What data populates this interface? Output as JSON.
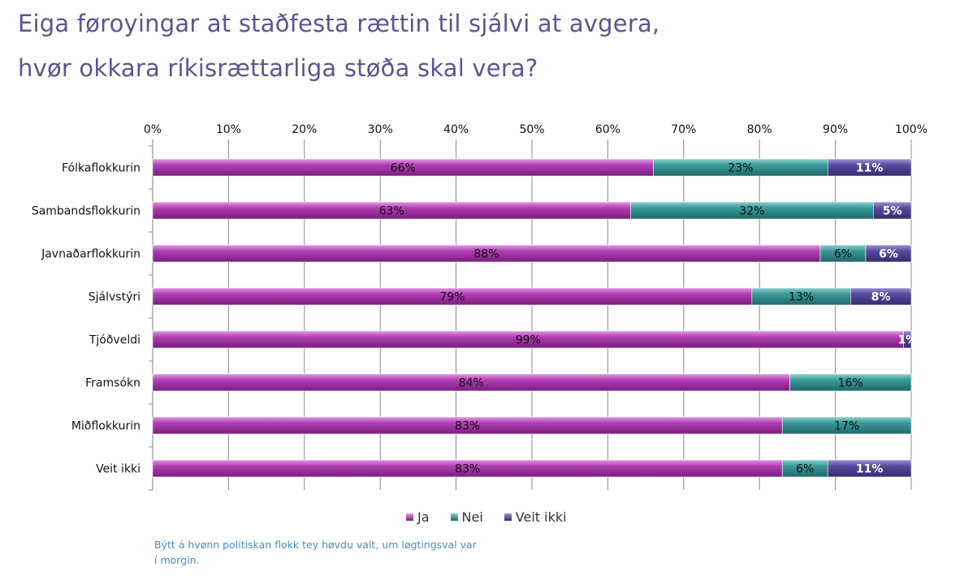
{
  "title": {
    "line1": "Eiga føroyingar at staðfesta rættin til sjálvi at avgera,",
    "line2": "hvør okkara ríkisrættarliga støða skal vera?"
  },
  "footnote": "Býtt á hvønn politiskan flokk tey høvdu valt, um løgtingsval var í morgin.",
  "colors": {
    "ja": "#9b2a9e",
    "nei": "#2f8c8c",
    "veit_ikki": "#4a3f8f"
  },
  "chart_data": {
    "type": "bar",
    "orientation": "horizontal",
    "stacked": "percent",
    "categories": [
      "Fólkaflokkurin",
      "Sambandsflokkurin",
      "Javnaðarflokkurin",
      "Sjálvstýri",
      "Tjóðveldi",
      "Framsókn",
      "Miðflokkurin",
      "Veit ikki"
    ],
    "series": [
      {
        "name": "Ja",
        "values": [
          66,
          63,
          88,
          79,
          99,
          84,
          83,
          83
        ]
      },
      {
        "name": "Nei",
        "values": [
          23,
          32,
          6,
          13,
          0,
          16,
          17,
          6
        ]
      },
      {
        "name": "Veit ikki",
        "values": [
          11,
          5,
          6,
          8,
          1,
          0,
          0,
          11
        ]
      }
    ],
    "xlim": [
      0,
      100
    ],
    "xticks": [
      "0%",
      "10%",
      "20%",
      "30%",
      "40%",
      "50%",
      "60%",
      "70%",
      "80%",
      "90%",
      "100%"
    ],
    "axis_position": "top",
    "grid": "vertical",
    "legend_position": "bottom"
  }
}
